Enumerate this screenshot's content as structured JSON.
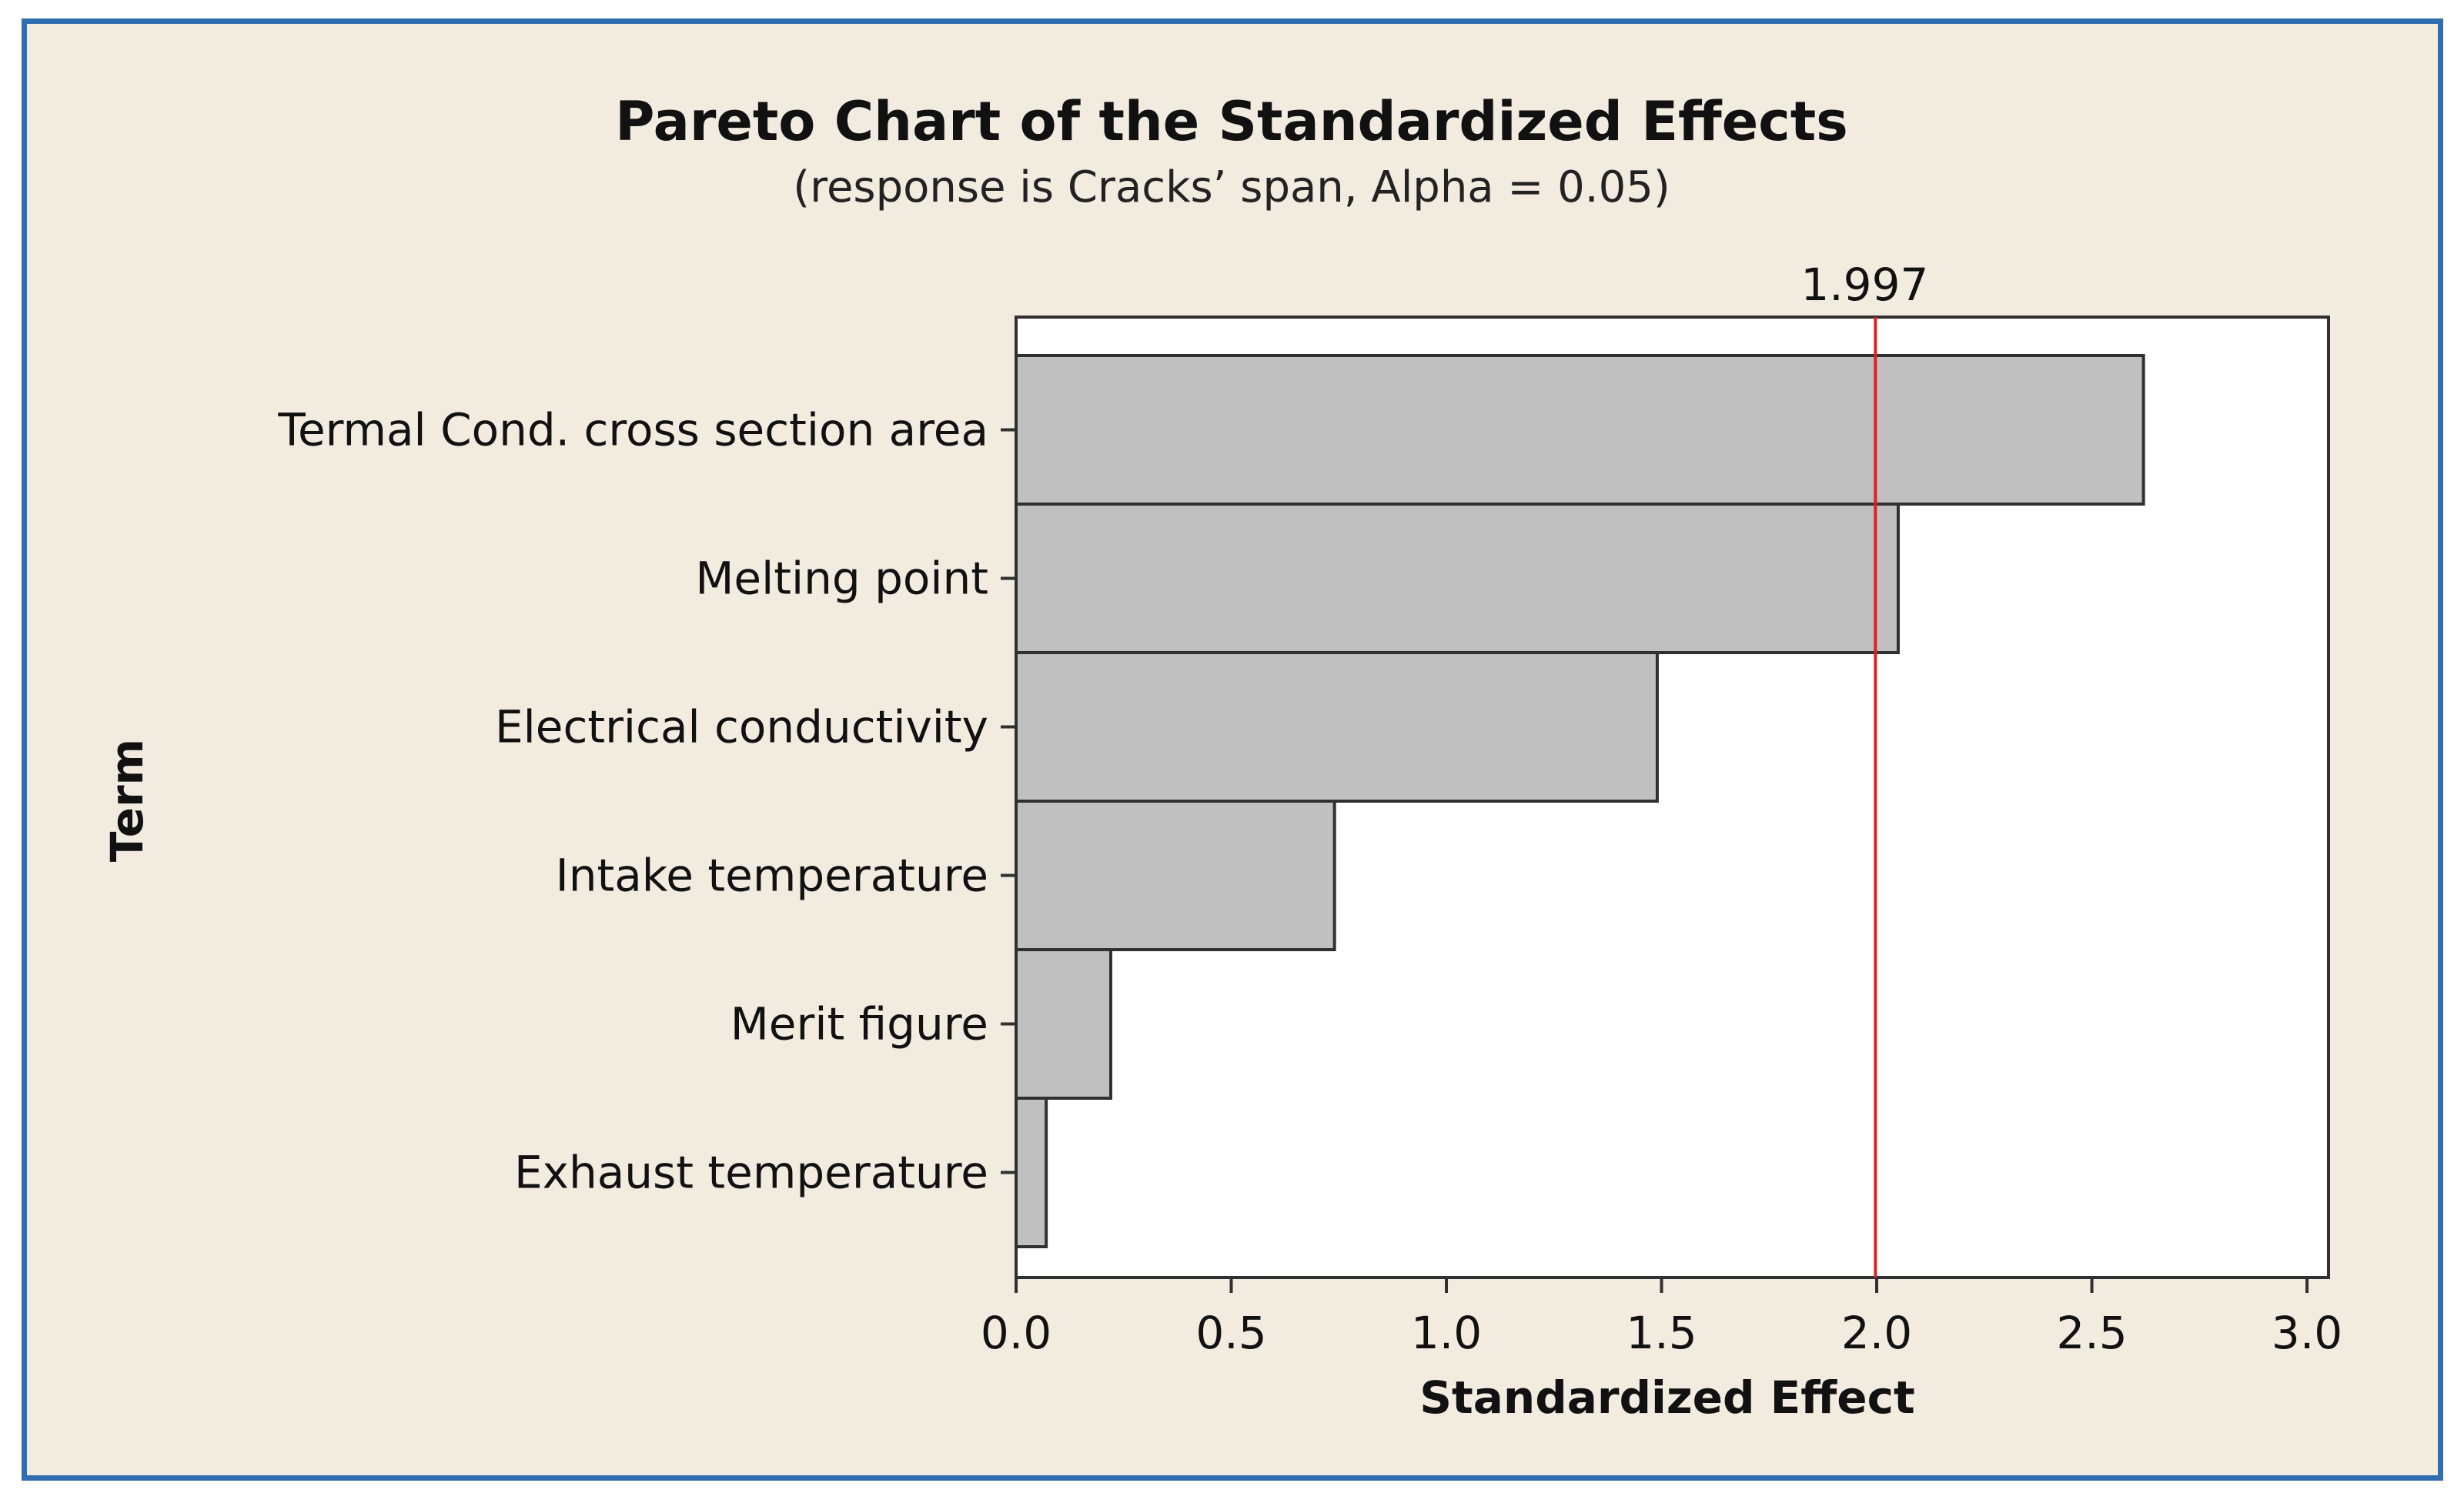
{
  "chart_data": {
    "type": "bar",
    "orientation": "horizontal",
    "title": "Pareto Chart of the Standardized Effects",
    "subtitle": "(response is Cracks’ span, Alpha = 0.05)",
    "xlabel": "Standardized Effect",
    "ylabel": "Term",
    "categories": [
      "Termal Cond. cross section area",
      "Melting point",
      "Electrical conductivity",
      "Intake temperature",
      "Merit figure",
      "Exhaust temperature"
    ],
    "values": [
      2.62,
      2.05,
      1.49,
      0.74,
      0.22,
      0.07
    ],
    "xlim": [
      0,
      3.05
    ],
    "xticks": [
      "0.0",
      "0.5",
      "1.0",
      "1.5",
      "2.0",
      "2.5",
      "3.0"
    ],
    "reference_line": {
      "value": 1.997,
      "label": "1.997"
    },
    "grid": false
  },
  "colors": {
    "bar_fill": "#c0c0c0",
    "bar_stroke": "#303030",
    "reference_line": "#e02020",
    "background": "#f1ebe0",
    "frame": "#2f6fb0"
  }
}
